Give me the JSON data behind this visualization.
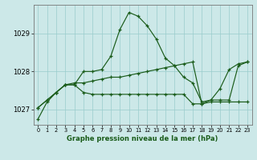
{
  "xlabel": "Graphe pression niveau de la mer (hPa)",
  "x_ticks": [
    0,
    1,
    2,
    3,
    4,
    5,
    6,
    7,
    8,
    9,
    10,
    11,
    12,
    13,
    14,
    15,
    16,
    17,
    18,
    19,
    20,
    21,
    22,
    23
  ],
  "ylim": [
    1026.6,
    1029.75
  ],
  "yticks": [
    1027,
    1028,
    1029
  ],
  "bg_color": "#cce8e8",
  "grid_color": "#99cccc",
  "line_color": "#1a5c1a",
  "line1": [
    1026.75,
    1027.2,
    1027.45,
    1027.65,
    1027.65,
    1028.0,
    1028.0,
    1028.05,
    1028.4,
    1029.1,
    1029.55,
    1029.45,
    1029.2,
    1028.85,
    1028.35,
    1028.15,
    1027.85,
    1027.7,
    1027.2,
    1027.25,
    1027.25,
    1027.25,
    1028.15,
    1028.25
  ],
  "line2": [
    1027.05,
    1027.25,
    1027.45,
    1027.65,
    1027.65,
    1027.45,
    1027.4,
    1027.4,
    1027.4,
    1027.4,
    1027.4,
    1027.4,
    1027.4,
    1027.4,
    1027.4,
    1027.4,
    1027.4,
    1027.15,
    1027.15,
    1027.2,
    1027.2,
    1027.2,
    1027.2,
    1027.2
  ],
  "line3": [
    1027.05,
    1027.25,
    1027.45,
    1027.65,
    1027.7,
    1027.7,
    1027.75,
    1027.8,
    1027.85,
    1027.85,
    1027.9,
    1027.95,
    1028.0,
    1028.05,
    1028.1,
    1028.15,
    1028.2,
    1028.25,
    1027.15,
    1027.25,
    1027.55,
    1028.05,
    1028.2,
    1028.25
  ]
}
